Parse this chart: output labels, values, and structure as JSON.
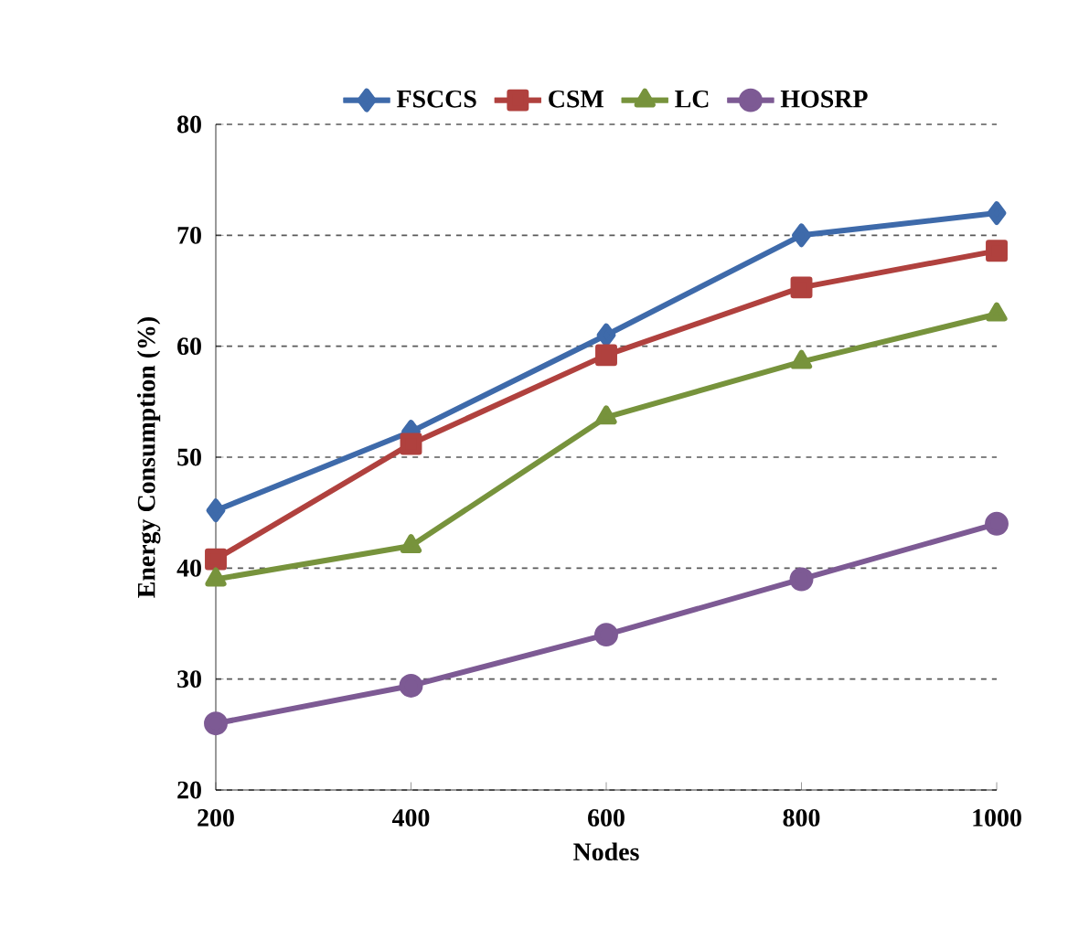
{
  "chart_data": {
    "type": "line",
    "xlabel": "Nodes",
    "ylabel": "Energy Consumption (%)",
    "x": [
      200,
      400,
      600,
      800,
      1000
    ],
    "series": [
      {
        "name": "FSCCS",
        "color": "#3e6aaa",
        "marker": "diamond",
        "values": [
          45.2,
          52.3,
          61,
          70,
          72
        ]
      },
      {
        "name": "CSM",
        "color": "#b0413e",
        "marker": "square",
        "values": [
          40.8,
          51.2,
          59.2,
          65.3,
          68.6
        ]
      },
      {
        "name": "LC",
        "color": "#77933c",
        "marker": "triangle",
        "values": [
          39,
          42,
          53.6,
          58.6,
          62.9
        ]
      },
      {
        "name": "HOSRP",
        "color": "#7d5a94",
        "marker": "circle",
        "values": [
          26,
          29.4,
          34,
          39,
          44
        ]
      }
    ],
    "xlim": [
      200,
      1000
    ],
    "ylim": [
      20,
      80
    ],
    "xticks": [
      200,
      400,
      600,
      800,
      1000
    ],
    "yticks": [
      20,
      30,
      40,
      50,
      60,
      70,
      80
    ],
    "grid": "y",
    "legend": "top",
    "line_style": "solid"
  }
}
